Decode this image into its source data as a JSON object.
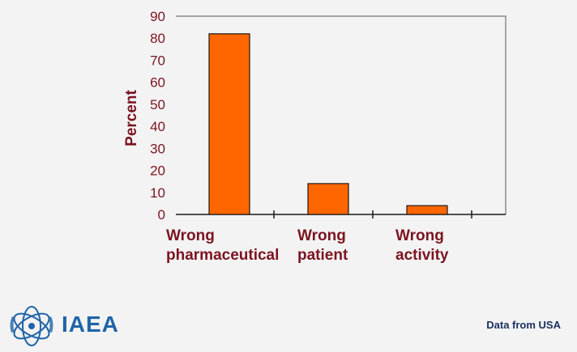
{
  "chart_data": {
    "type": "bar",
    "categories": [
      [
        "Wrong",
        "pharmaceutical"
      ],
      [
        "Wrong",
        "patient"
      ],
      [
        "Wrong",
        "activity"
      ]
    ],
    "values": [
      82,
      14,
      4
    ],
    "ylabel": "Percent",
    "yticks": [
      0,
      10,
      20,
      30,
      40,
      50,
      60,
      70,
      80,
      90
    ],
    "ylim": [
      0,
      90
    ],
    "grid": false,
    "bar_color": "#ff6600"
  },
  "footer": {
    "logo_text": "IAEA",
    "source_note": "Data from USA",
    "logo_icon": "iaea-emblem-icon"
  },
  "colors": {
    "text_dark_red": "#7b1420",
    "logo_blue": "#1f64a8",
    "note_navy": "#1b2f5f",
    "background": "#f3f3f3"
  }
}
